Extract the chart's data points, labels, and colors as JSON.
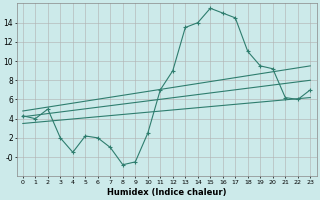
{
  "xlabel": "Humidex (Indice chaleur)",
  "main_curve_x": [
    0,
    1,
    2,
    3,
    4,
    5,
    6,
    7,
    8,
    9,
    10,
    11,
    12,
    13,
    14,
    15,
    16,
    17,
    18,
    19,
    20,
    21,
    22,
    23
  ],
  "main_curve_y": [
    4.3,
    4.0,
    5.0,
    2.0,
    0.5,
    2.2,
    2.0,
    1.0,
    -0.8,
    -0.5,
    2.5,
    7.0,
    9.0,
    13.5,
    14.0,
    15.5,
    15.0,
    14.5,
    11.0,
    9.5,
    9.2,
    6.2,
    6.0,
    7.0
  ],
  "upper_line_x": [
    0,
    23
  ],
  "upper_line_y": [
    4.8,
    9.5
  ],
  "lower_line_x": [
    0,
    23
  ],
  "lower_line_y": [
    3.5,
    6.2
  ],
  "mid_line_x": [
    0,
    23
  ],
  "mid_line_y": [
    4.2,
    8.0
  ],
  "bg_color": "#cceaea",
  "grid_color": "#b0b0b0",
  "line_color": "#2e7d6e",
  "ylim": [
    -2,
    16
  ],
  "xlim": [
    -0.5,
    23.5
  ],
  "yticks": [
    0,
    2,
    4,
    6,
    8,
    10,
    12,
    14
  ],
  "ytick_labels": [
    "-0",
    "2",
    "4",
    "6",
    "8",
    "10",
    "12",
    "14"
  ],
  "xticks": [
    0,
    1,
    2,
    3,
    4,
    5,
    6,
    7,
    8,
    9,
    10,
    11,
    12,
    13,
    14,
    15,
    16,
    17,
    18,
    19,
    20,
    21,
    22,
    23
  ]
}
